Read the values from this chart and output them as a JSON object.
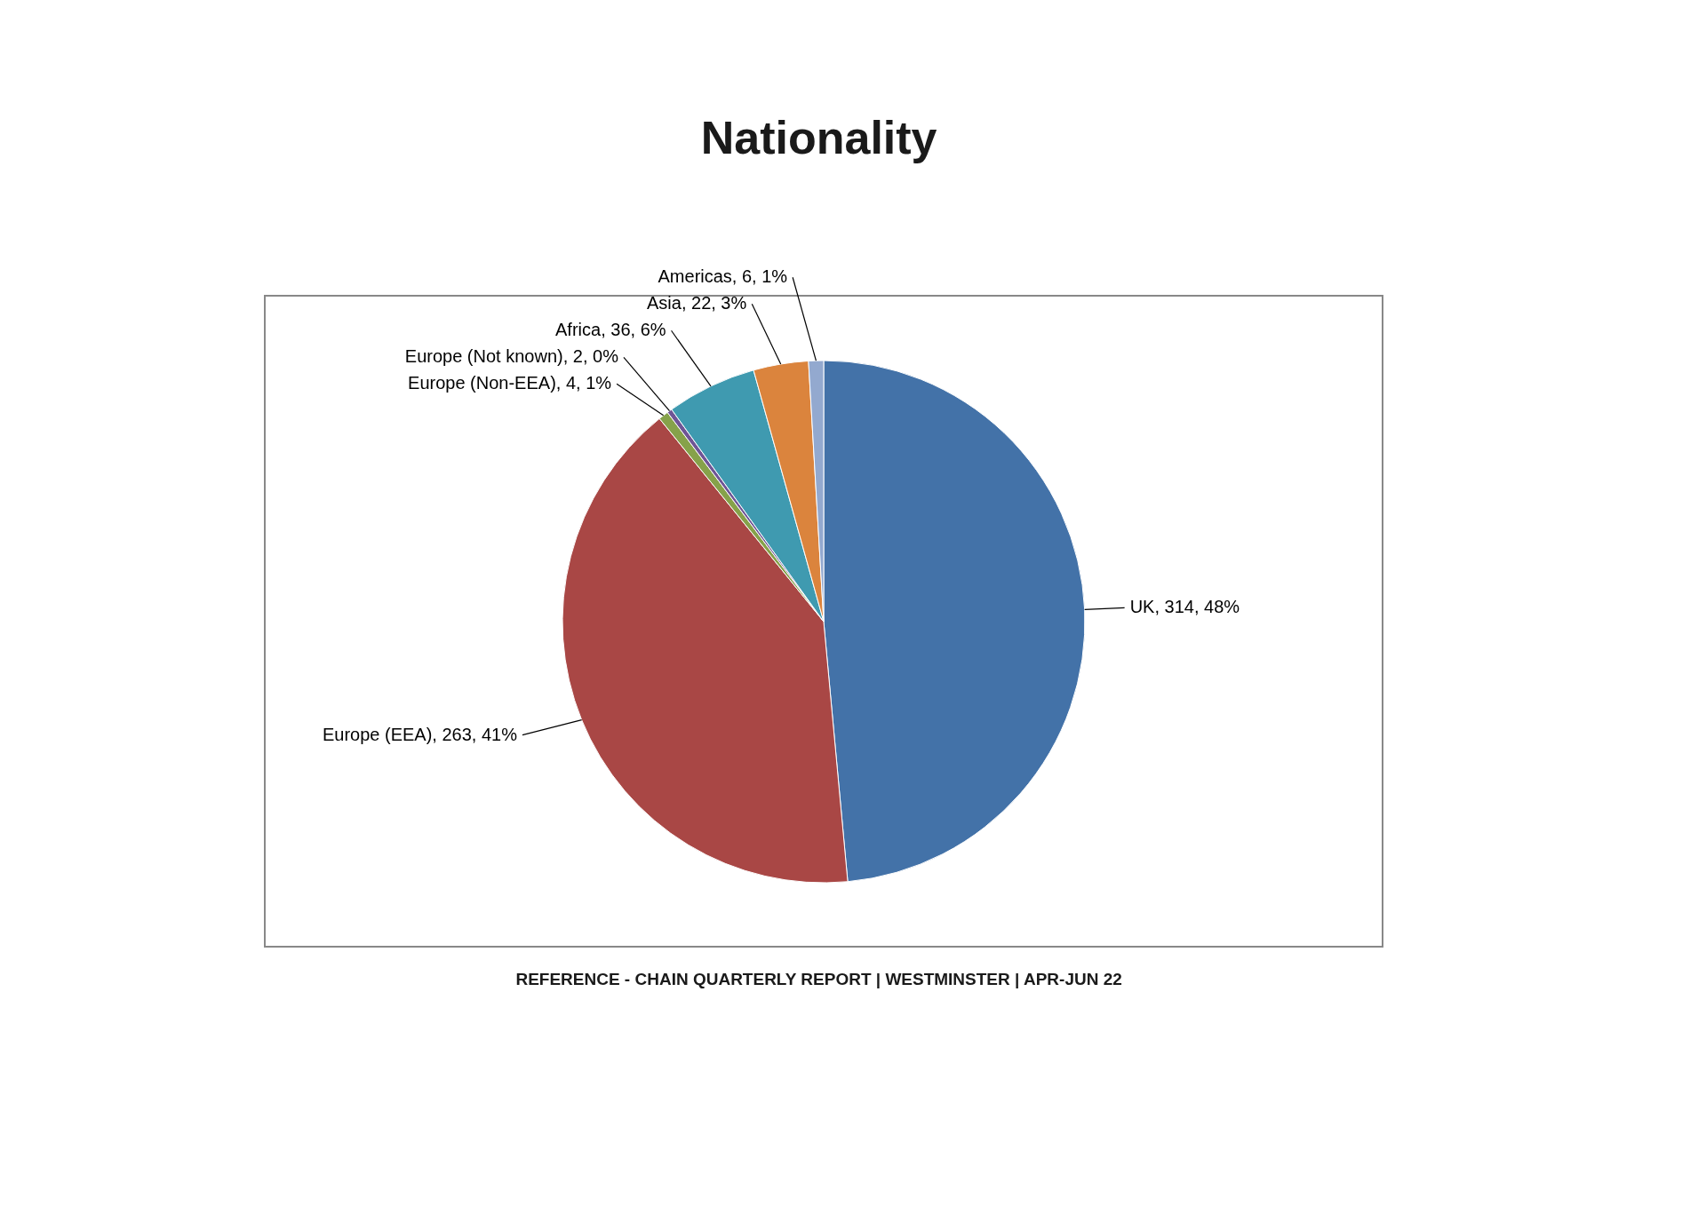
{
  "chart_data": {
    "type": "pie",
    "title": "Nationality",
    "categories": [
      "UK",
      "Europe (EEA)",
      "Europe (Non-EEA)",
      "Europe (Not known)",
      "Africa",
      "Asia",
      "Americas"
    ],
    "values": [
      314,
      263,
      4,
      2,
      36,
      22,
      6
    ],
    "colors": [
      "#4372a8",
      "#a94745",
      "#86a24a",
      "#6f5596",
      "#3f9ab0",
      "#db843d",
      "#93a9cf"
    ],
    "value_labels": [
      "314, 48%",
      "263, 41%",
      "4, 1%",
      "2, 0%",
      "36, 6%",
      "22, 3%",
      "6, 1%"
    ],
    "annotations": [
      "REFERENCE - CHAIN QUARTERLY REPORT | WESTMINSTER | APR-JUN 22"
    ]
  }
}
